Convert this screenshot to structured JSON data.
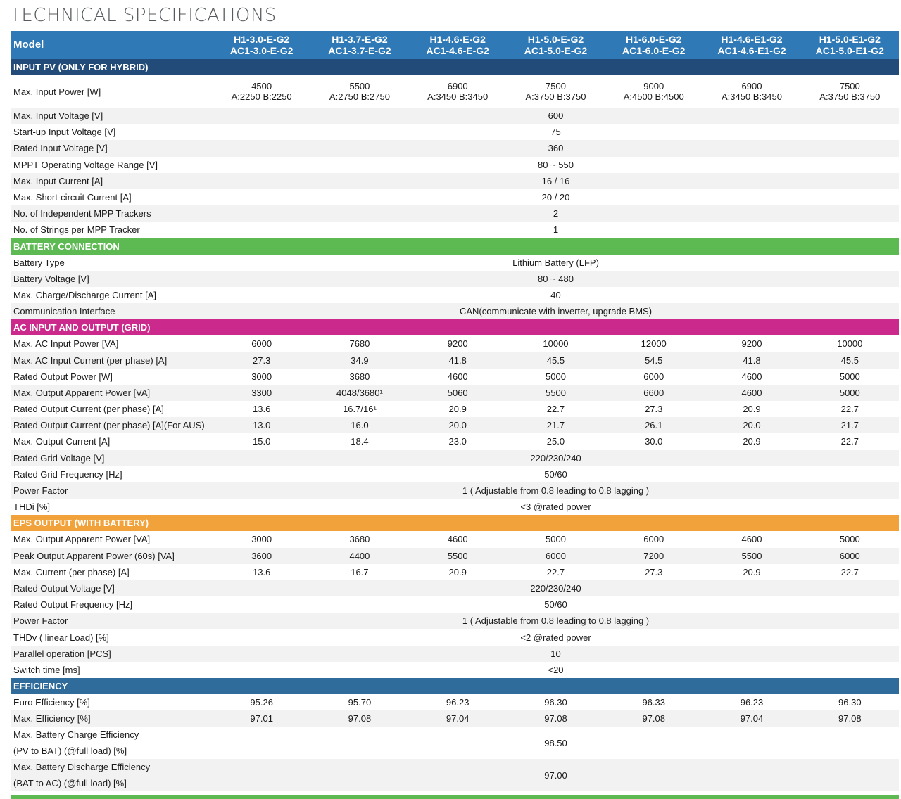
{
  "title": "TECHNICAL SPECIFICATIONS",
  "header": {
    "label": "Model",
    "models": [
      [
        "H1-3.0-E-G2",
        "AC1-3.0-E-G2"
      ],
      [
        "H1-3.7-E-G2",
        "AC1-3.7-E-G2"
      ],
      [
        "H1-4.6-E-G2",
        "AC1-4.6-E-G2"
      ],
      [
        "H1-5.0-E-G2",
        "AC1-5.0-E-G2"
      ],
      [
        "H1-6.0-E-G2",
        "AC1-6.0-E-G2"
      ],
      [
        "H1-4.6-E1-G2",
        "AC1-4.6-E1-G2"
      ],
      [
        "H1-5.0-E1-G2",
        "AC1-5.0-E1-G2"
      ]
    ]
  },
  "sections": [
    {
      "title": "INPUT PV (ONLY FOR HYBRID)",
      "color": "#234b79",
      "rows": [
        {
          "label": "Max. Input Power [W]",
          "values": [
            "4500\nA:2250 B:2250",
            "5500\nA:2750 B:2750",
            "6900\nA:3450 B:3450",
            "7500\nA:3750 B:3750",
            "9000\nA:4500 B:4500",
            "6900\nA:3450 B:3450",
            "7500\nA:3750 B:3750"
          ],
          "tall": true
        },
        {
          "label": "Max. Input Voltage  [V]",
          "span": "600"
        },
        {
          "label": "Start-up Input Voltage [V]",
          "span": "75"
        },
        {
          "label": "Rated Input Voltage [V]",
          "span": "360"
        },
        {
          "label": "MPPT Operating Voltage Range [V]",
          "span": "80 ~ 550"
        },
        {
          "label": "Max. Input Current [A]",
          "span": "16 / 16"
        },
        {
          "label": "Max. Short-circuit Current [A]",
          "span": "20 / 20"
        },
        {
          "label": "No. of Independent MPP Trackers",
          "span": "2"
        },
        {
          "label": "No. of Strings per MPP Tracker",
          "span": "1"
        }
      ]
    },
    {
      "title": "BATTERY CONNECTION",
      "color": "#5dba53",
      "rows": [
        {
          "label": "Battery Type",
          "span": "Lithium Battery (LFP)"
        },
        {
          "label": "Battery Voltage [V]",
          "span": "80 ~ 480"
        },
        {
          "label": "Max. Charge/Discharge Current [A]",
          "span": "40"
        },
        {
          "label": "Communication Interface",
          "span": "CAN(communicate with inverter, upgrade BMS)"
        }
      ]
    },
    {
      "title": "AC INPUT AND OUTPUT (GRID)",
      "color": "#cb2a8c",
      "rows": [
        {
          "label": "Max. AC Input Power [VA]",
          "values": [
            "6000",
            "7680",
            "9200",
            "10000",
            "12000",
            "9200",
            "10000"
          ]
        },
        {
          "label": "Max. AC Input Current (per phase) [A]",
          "values": [
            "27.3",
            "34.9",
            "41.8",
            "45.5",
            "54.5",
            "41.8",
            "45.5"
          ]
        },
        {
          "label": "Rated Output Power [W]",
          "values": [
            "3000",
            "3680",
            "4600",
            "5000",
            "6000",
            "4600",
            "5000"
          ]
        },
        {
          "label": "Max. Output Apparent Power [VA]",
          "values": [
            "3300",
            "4048/3680¹",
            "5060",
            "5500",
            "6600",
            "4600",
            "5000"
          ]
        },
        {
          "label": "Rated Output Current (per phase) [A]",
          "values": [
            "13.6",
            "16.7/16¹",
            "20.9",
            "22.7",
            "27.3",
            "20.9",
            "22.7"
          ]
        },
        {
          "label": "Rated Output Current (per phase) [A](For AUS)",
          "values": [
            "13.0",
            "16.0",
            "20.0",
            "21.7",
            "26.1",
            "20.0",
            "21.7"
          ]
        },
        {
          "label": "Max. Output Current [A]",
          "values": [
            "15.0",
            "18.4",
            "23.0",
            "25.0",
            "30.0",
            "20.9",
            "22.7"
          ]
        },
        {
          "label": "Rated Grid Voltage [V]",
          "span": "220/230/240"
        },
        {
          "label": "Rated Grid Frequency [Hz]",
          "span": "50/60"
        },
        {
          "label": "Power Factor",
          "span": "1 ( Adjustable from 0.8 leading to 0.8 lagging )"
        },
        {
          "label": "THDi [%]",
          "span": "<3 @rated power"
        }
      ]
    },
    {
      "title": "EPS OUTPUT (WITH BATTERY)",
      "color": "#f2a23a",
      "rows": [
        {
          "label": "Max. Output Apparent Power [VA]",
          "values": [
            "3000",
            "3680",
            "4600",
            "5000",
            "6000",
            "4600",
            "5000"
          ]
        },
        {
          "label": "Peak Output Apparent Power (60s) [VA]",
          "values": [
            "3600",
            "4400",
            "5500",
            "6000",
            "7200",
            "5500",
            "6000"
          ]
        },
        {
          "label": "Max. Current (per phase) [A]",
          "values": [
            "13.6",
            "16.7",
            "20.9",
            "22.7",
            "27.3",
            "20.9",
            "22.7"
          ]
        },
        {
          "label": "Rated Output Voltage [V]",
          "span": "220/230/240"
        },
        {
          "label": "Rated Output Frequency [Hz]",
          "span": "50/60"
        },
        {
          "label": "Power Factor",
          "span": "1 ( Adjustable from 0.8 leading to 0.8 lagging )"
        },
        {
          "label": "THDv ( linear Load) [%]",
          "span": "<2 @rated power"
        },
        {
          "label": "Parallel operation [PCS]",
          "span": "10"
        },
        {
          "label": "Switch time [ms]",
          "span": "<20"
        }
      ]
    },
    {
      "title": "EFFICIENCY",
      "color": "#2f6b9b",
      "rows": [
        {
          "label": "Euro Efficiency [%]",
          "values": [
            "95.26",
            "95.70",
            "96.23",
            "96.30",
            "96.33",
            "96.23",
            "96.30"
          ]
        },
        {
          "label": "Max. Efficiency [%]",
          "values": [
            "97.01",
            "97.08",
            "97.04",
            "97.08",
            "97.08",
            "97.04",
            "97.08"
          ]
        },
        {
          "label": "Max. Battery Charge Efficiency\n(PV to BAT) (@full load) [%]",
          "span": "98.50",
          "tall": true
        },
        {
          "label": "Max. Battery Discharge Efficiency\n(BAT to AC) (@full load) [%]",
          "span": "97.00",
          "tall": true
        }
      ]
    }
  ]
}
